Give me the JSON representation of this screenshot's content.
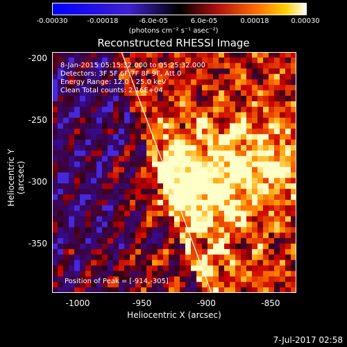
{
  "colorbar": {
    "ticks": [
      "-0.00030",
      "-0.00018",
      "-6.0e-05",
      "6.0e-05",
      "0.00018",
      "0.00030"
    ],
    "unit_label": "(photons cm⁻² s⁻¹ asec⁻²)",
    "range": [
      -0.0003,
      0.0003
    ]
  },
  "chart_data": {
    "type": "heatmap",
    "title": "Reconstructed RHESSI Image",
    "xlabel": "Heliocentric X (arcsec)",
    "ylabel": "Heliocentric Y (arcsec)",
    "xlim": [
      -1020,
      -830
    ],
    "ylim": [
      -390,
      -195
    ],
    "x_ticks": [
      "-1000",
      "-950",
      "-900",
      "-850"
    ],
    "x_tick_values": [
      -1000,
      -950,
      -900,
      -850
    ],
    "y_ticks": [
      "-200",
      "-250",
      "-300",
      "-350"
    ],
    "y_tick_values": [
      -200,
      -250,
      -300,
      -350
    ],
    "annotations": [
      "8-Jan-2015 05:15:32.000 to 05:25:32.000",
      "Detectors: 3F 5F 6F 7F 8F 9F, Att 0",
      "Energy Range: 12.0 - 25.0 keV",
      "Clean    Total counts: 2.16E+04"
    ],
    "peak_label": "Position of Peak = [-914,-305]",
    "peak": [
      -914,
      -305
    ],
    "limb_line": [
      [
        -966,
        -195
      ],
      [
        -896,
        -390
      ]
    ]
  },
  "footer": {
    "timestamp": "7-Jul-2017 02:58"
  }
}
